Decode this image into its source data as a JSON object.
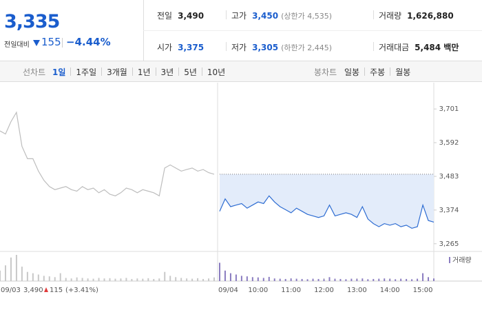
{
  "header": {
    "price": "3,335",
    "change_label": "전일대비",
    "change": "155",
    "change_pct": "−4.44%",
    "color": "#1a5dcd",
    "stats": [
      [
        {
          "label": "전일",
          "value": "3,490"
        },
        {
          "label": "고가",
          "value": "3,450",
          "color": "#1a5dcd",
          "note": "(상한가 4,535)"
        },
        {
          "label": "거래량",
          "value": "1,626,880"
        }
      ],
      [
        {
          "label": "시가",
          "value": "3,375",
          "color": "#1a5dcd"
        },
        {
          "label": "저가",
          "value": "3,305",
          "color": "#1a5dcd",
          "note": "(하한가 2,445)"
        },
        {
          "label": "거래대금",
          "value": "5,484 백만"
        }
      ]
    ]
  },
  "line_tabs": {
    "label": "선차트",
    "items": [
      "1일",
      "1주일",
      "3개월",
      "1년",
      "3년",
      "5년",
      "10년"
    ],
    "selected": 0
  },
  "candle_tabs": {
    "label": "봉차트",
    "items": [
      "일봉",
      "주봉",
      "월봉"
    ]
  },
  "chart_data": {
    "type": "line",
    "categories": [
      "09/03",
      null,
      null,
      null,
      null,
      null,
      null,
      null,
      null,
      null,
      null,
      null,
      null,
      null,
      null,
      null,
      null,
      null,
      null,
      null,
      null,
      null,
      null,
      null,
      null,
      null,
      null,
      null,
      null,
      null,
      null,
      null,
      null,
      null,
      null,
      null,
      null,
      null,
      null,
      null,
      "09/04",
      null,
      null,
      null,
      null,
      null,
      null,
      "10:00",
      null,
      null,
      null,
      null,
      null,
      "11:00",
      null,
      null,
      null,
      null,
      null,
      "12:00",
      null,
      null,
      null,
      null,
      null,
      "13:00",
      null,
      null,
      null,
      null,
      null,
      "14:00",
      null,
      null,
      null,
      null,
      null,
      "15:00",
      null,
      null
    ],
    "series": [
      {
        "color": "#bdbdbd",
        "values": [
          3630,
          3620,
          3660,
          3690,
          3580,
          3540,
          3540,
          3500,
          3470,
          3450,
          3440,
          3445,
          3450,
          3440,
          3435,
          3450,
          3440,
          3445,
          3430,
          3440,
          3425,
          3420,
          3430,
          3445,
          3440,
          3430,
          3440,
          3435,
          3430,
          3420,
          3510,
          3520,
          3510,
          3500,
          3505,
          3510,
          3500,
          3505,
          3495,
          3490,
          null,
          null,
          null,
          null,
          null,
          null,
          null,
          null,
          null,
          null,
          null,
          null,
          null,
          null,
          null,
          null,
          null,
          null,
          null,
          null,
          null,
          null,
          null,
          null,
          null,
          null,
          null,
          null,
          null,
          null,
          null,
          null,
          null,
          null,
          null,
          null,
          null,
          null,
          null,
          null
        ]
      },
      {
        "color": "#2d6cd2",
        "fill": "#e3ecfa",
        "values": [
          null,
          null,
          null,
          null,
          null,
          null,
          null,
          null,
          null,
          null,
          null,
          null,
          null,
          null,
          null,
          null,
          null,
          null,
          null,
          null,
          null,
          null,
          null,
          null,
          null,
          null,
          null,
          null,
          null,
          null,
          null,
          null,
          null,
          null,
          null,
          null,
          null,
          null,
          null,
          null,
          3370,
          3410,
          3385,
          3390,
          3395,
          3380,
          3390,
          3400,
          3395,
          3420,
          3400,
          3385,
          3375,
          3365,
          3380,
          3370,
          3360,
          3355,
          3350,
          3355,
          3390,
          3355,
          3360,
          3365,
          3360,
          3350,
          3385,
          3345,
          3330,
          3320,
          3330,
          3325,
          3330,
          3320,
          3325,
          3315,
          3320,
          3390,
          3340,
          3335
        ]
      }
    ],
    "baseline": 3490,
    "ylim": [
      3240,
      3775
    ],
    "yticks": [
      {
        "value": 3701,
        "label": "3,701"
      },
      {
        "value": 3592,
        "label": "3,592"
      },
      {
        "value": 3483,
        "label": "3,483"
      },
      {
        "value": 3374,
        "label": "3,374"
      },
      {
        "value": 3265,
        "label": "3,265"
      }
    ],
    "grid": false,
    "volume": {
      "name": "거래량",
      "color": "#8a7cc0",
      "prev_color": "#c8c8c8",
      "ylim": [
        0,
        100
      ],
      "values": [
        40,
        60,
        90,
        100,
        55,
        35,
        30,
        25,
        20,
        18,
        15,
        30,
        12,
        10,
        14,
        12,
        10,
        9,
        12,
        10,
        11,
        9,
        10,
        12,
        8,
        10,
        9,
        11,
        8,
        10,
        35,
        20,
        15,
        12,
        10,
        9,
        11,
        8,
        10,
        14,
        70,
        40,
        30,
        25,
        20,
        18,
        15,
        14,
        12,
        16,
        10,
        9,
        8,
        10,
        9,
        8,
        7,
        9,
        8,
        7,
        15,
        9,
        8,
        7,
        9,
        8,
        10,
        7,
        8,
        9,
        10,
        8,
        7,
        9,
        8,
        7,
        9,
        30,
        15,
        10
      ]
    },
    "summary": {
      "close": "3,490",
      "change": "115",
      "change_pct": "(+3.41%)",
      "color": "#e03a3a"
    }
  }
}
